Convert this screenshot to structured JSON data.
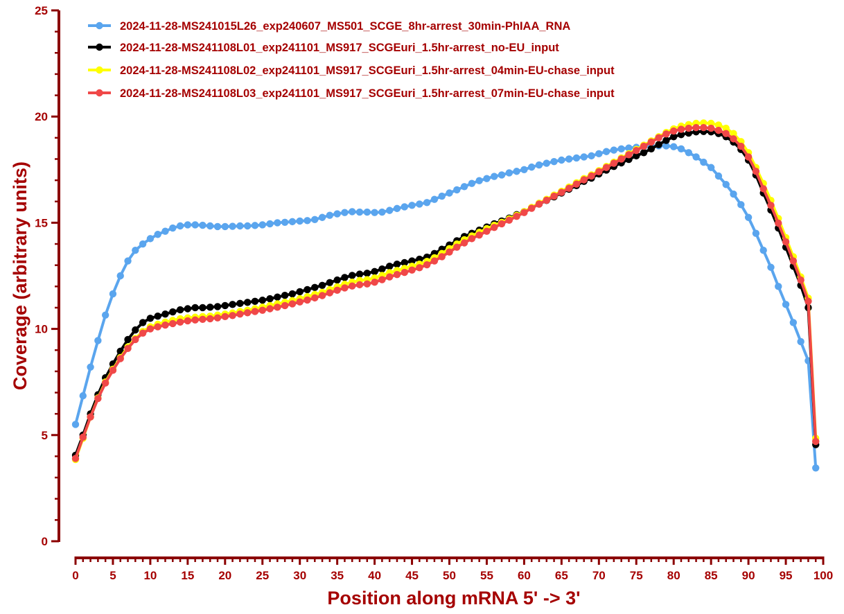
{
  "colors": {
    "axis": "#8b0000",
    "text": "#a50000"
  },
  "chart_data": {
    "type": "line",
    "title": "",
    "xlabel": "Position along mRNA 5' -> 3'",
    "ylabel": "Coverage (arbitrary units)",
    "xlim": [
      0,
      100
    ],
    "ylim": [
      0,
      25
    ],
    "xticks": [
      0,
      5,
      10,
      15,
      20,
      25,
      30,
      35,
      40,
      45,
      50,
      55,
      60,
      65,
      70,
      75,
      80,
      85,
      90,
      95,
      100
    ],
    "yticks": [
      0,
      5,
      10,
      15,
      20,
      25
    ],
    "grid": false,
    "legend_position": "top-left",
    "x": [
      0,
      1,
      2,
      3,
      4,
      5,
      6,
      7,
      8,
      9,
      10,
      11,
      12,
      13,
      14,
      15,
      16,
      17,
      18,
      19,
      20,
      21,
      22,
      23,
      24,
      25,
      26,
      27,
      28,
      29,
      30,
      31,
      32,
      33,
      34,
      35,
      36,
      37,
      38,
      39,
      40,
      41,
      42,
      43,
      44,
      45,
      46,
      47,
      48,
      49,
      50,
      51,
      52,
      53,
      54,
      55,
      56,
      57,
      58,
      59,
      60,
      61,
      62,
      63,
      64,
      65,
      66,
      67,
      68,
      69,
      70,
      71,
      72,
      73,
      74,
      75,
      76,
      77,
      78,
      79,
      80,
      81,
      82,
      83,
      84,
      85,
      86,
      87,
      88,
      89,
      90,
      91,
      92,
      93,
      94,
      95,
      96,
      97,
      98,
      99
    ],
    "series": [
      {
        "name": "2024-11-28-MS241015L26_exp240607_MS501_SCGE_8hr-arrest_30min-PhIAA_RNA",
        "color": "#5aa5ee",
        "values": [
          5.5,
          6.85,
          8.2,
          9.45,
          10.65,
          11.65,
          12.5,
          13.2,
          13.7,
          14.0,
          14.25,
          14.45,
          14.6,
          14.75,
          14.85,
          14.9,
          14.9,
          14.88,
          14.85,
          14.82,
          14.82,
          14.83,
          14.85,
          14.85,
          14.87,
          14.9,
          14.95,
          15.0,
          15.02,
          15.05,
          15.08,
          15.1,
          15.15,
          15.25,
          15.35,
          15.42,
          15.48,
          15.52,
          15.5,
          15.5,
          15.48,
          15.5,
          15.58,
          15.67,
          15.75,
          15.82,
          15.88,
          15.95,
          16.1,
          16.25,
          16.4,
          16.55,
          16.7,
          16.85,
          16.98,
          17.08,
          17.18,
          17.25,
          17.35,
          17.42,
          17.5,
          17.62,
          17.72,
          17.8,
          17.88,
          17.95,
          18.0,
          18.05,
          18.1,
          18.15,
          18.25,
          18.35,
          18.42,
          18.48,
          18.52,
          18.55,
          18.58,
          18.6,
          18.62,
          18.62,
          18.58,
          18.48,
          18.3,
          18.1,
          17.85,
          17.6,
          17.2,
          16.8,
          16.35,
          15.85,
          15.25,
          14.5,
          13.7,
          12.9,
          12.0,
          11.15,
          10.3,
          9.4,
          8.5,
          3.45
        ]
      },
      {
        "name": "2024-11-28-MS241108L01_exp241101_MS917_SCGEuri_1.5hr-arrest_no-EU_input",
        "color": "#000000",
        "values": [
          4.05,
          5.0,
          6.0,
          6.9,
          7.7,
          8.35,
          8.95,
          9.5,
          9.95,
          10.3,
          10.5,
          10.6,
          10.7,
          10.8,
          10.9,
          10.95,
          11.0,
          11.0,
          11.02,
          11.05,
          11.1,
          11.15,
          11.2,
          11.25,
          11.3,
          11.35,
          11.42,
          11.5,
          11.58,
          11.65,
          11.75,
          11.85,
          11.95,
          12.05,
          12.18,
          12.3,
          12.42,
          12.52,
          12.58,
          12.62,
          12.7,
          12.82,
          12.95,
          13.05,
          13.12,
          13.2,
          13.28,
          13.38,
          13.55,
          13.75,
          13.95,
          14.15,
          14.35,
          14.5,
          14.65,
          14.8,
          14.95,
          15.08,
          15.22,
          15.38,
          15.52,
          15.7,
          15.88,
          16.05,
          16.22,
          16.4,
          16.58,
          16.75,
          16.95,
          17.1,
          17.3,
          17.48,
          17.65,
          17.82,
          17.98,
          18.15,
          18.3,
          18.48,
          18.68,
          18.88,
          19.05,
          19.15,
          19.22,
          19.28,
          19.3,
          19.28,
          19.2,
          19.05,
          18.8,
          18.45,
          17.95,
          17.25,
          16.4,
          15.6,
          14.75,
          13.85,
          12.95,
          12.05,
          11.0,
          4.55
        ]
      },
      {
        "name": "2024-11-28-MS241108L02_exp241101_MS917_SCGEuri_1.5hr-arrest_04min-EU-chase_input",
        "color": "#ffff00",
        "values": [
          3.85,
          4.85,
          5.85,
          6.75,
          7.5,
          8.1,
          8.65,
          9.15,
          9.55,
          9.88,
          10.1,
          10.22,
          10.32,
          10.4,
          10.48,
          10.52,
          10.55,
          10.58,
          10.6,
          10.65,
          10.7,
          10.75,
          10.82,
          10.88,
          10.95,
          11.02,
          11.1,
          11.18,
          11.25,
          11.33,
          11.42,
          11.52,
          11.62,
          11.72,
          11.85,
          11.98,
          12.1,
          12.2,
          12.28,
          12.32,
          12.4,
          12.52,
          12.65,
          12.75,
          12.85,
          12.95,
          13.05,
          13.18,
          13.35,
          13.55,
          13.78,
          14.0,
          14.2,
          14.38,
          14.55,
          14.72,
          14.88,
          15.02,
          15.18,
          15.35,
          15.52,
          15.72,
          15.92,
          16.1,
          16.3,
          16.48,
          16.68,
          16.88,
          17.08,
          17.25,
          17.45,
          17.65,
          17.85,
          18.05,
          18.25,
          18.45,
          18.65,
          18.85,
          19.05,
          19.25,
          19.42,
          19.55,
          19.62,
          19.68,
          19.7,
          19.68,
          19.6,
          19.45,
          19.2,
          18.82,
          18.3,
          17.6,
          16.85,
          16.05,
          15.2,
          14.3,
          13.4,
          12.45,
          11.45,
          4.85
        ]
      },
      {
        "name": "2024-11-28-MS241108L03_exp241101_MS917_SCGEuri_1.5hr-arrest_07min-EU-chase_input",
        "color": "#f04848",
        "values": [
          3.9,
          4.9,
          5.85,
          6.72,
          7.45,
          8.05,
          8.6,
          9.08,
          9.5,
          9.8,
          10.0,
          10.1,
          10.18,
          10.25,
          10.32,
          10.38,
          10.42,
          10.45,
          10.48,
          10.52,
          10.58,
          10.63,
          10.7,
          10.76,
          10.82,
          10.88,
          10.95,
          11.02,
          11.1,
          11.18,
          11.27,
          11.36,
          11.46,
          11.57,
          11.7,
          11.82,
          11.93,
          12.02,
          12.08,
          12.12,
          12.2,
          12.32,
          12.45,
          12.56,
          12.66,
          12.77,
          12.88,
          13.02,
          13.2,
          13.4,
          13.62,
          13.85,
          14.05,
          14.25,
          14.42,
          14.6,
          14.78,
          14.95,
          15.12,
          15.3,
          15.48,
          15.68,
          15.88,
          16.06,
          16.25,
          16.43,
          16.62,
          16.82,
          17.02,
          17.2,
          17.4,
          17.6,
          17.8,
          18.0,
          18.2,
          18.4,
          18.6,
          18.8,
          19.0,
          19.18,
          19.32,
          19.4,
          19.45,
          19.48,
          19.48,
          19.45,
          19.35,
          19.2,
          18.95,
          18.6,
          18.1,
          17.42,
          16.6,
          15.82,
          14.98,
          14.1,
          13.2,
          12.3,
          11.3,
          4.7
        ]
      }
    ]
  }
}
